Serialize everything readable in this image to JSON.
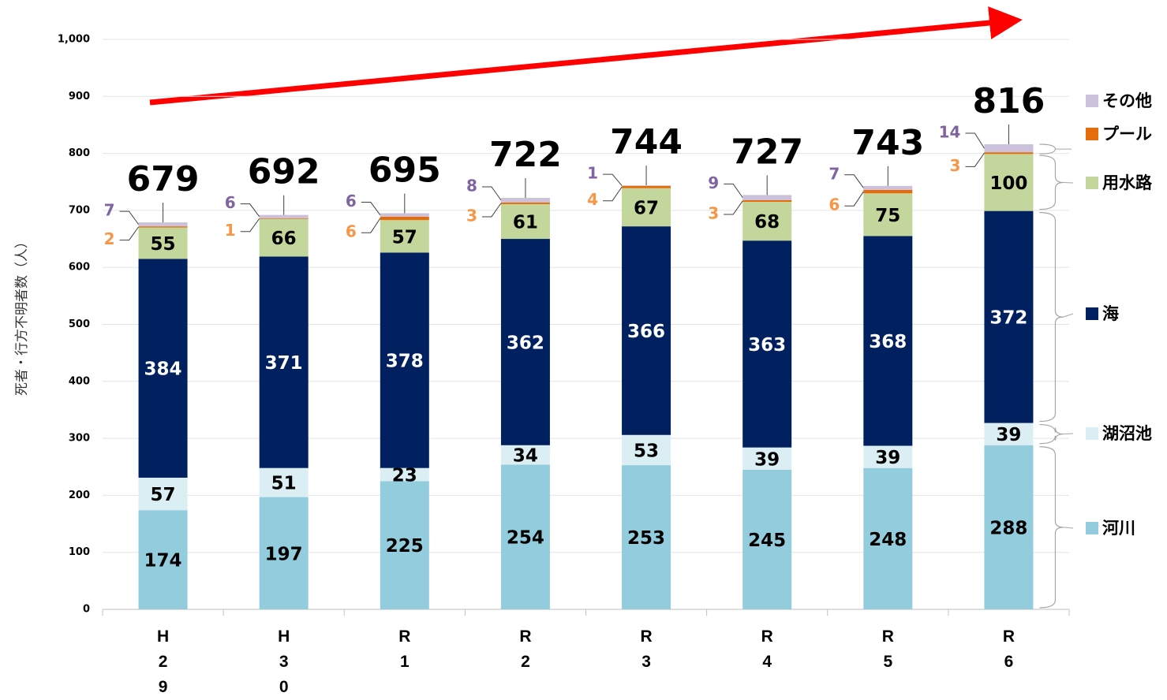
{
  "chart_data": {
    "type": "stacked_bar",
    "y_label": "死者・行方不明者数（人）",
    "categories": [
      "H29",
      "H30",
      "R1",
      "R2",
      "R3",
      "R4",
      "R5",
      "R6"
    ],
    "series": [
      {
        "name": "河川",
        "color": "#93cddd",
        "values": [
          174,
          197,
          225,
          254,
          253,
          245,
          248,
          288
        ]
      },
      {
        "name": "湖沼池",
        "color": "#dbeef4",
        "values": [
          57,
          51,
          23,
          34,
          53,
          39,
          39,
          39
        ]
      },
      {
        "name": "海",
        "color": "#002060",
        "values": [
          384,
          371,
          378,
          362,
          366,
          363,
          368,
          372
        ]
      },
      {
        "name": "用水路",
        "color": "#c3d69b",
        "values": [
          55,
          66,
          57,
          61,
          67,
          68,
          75,
          100
        ]
      },
      {
        "name": "プール",
        "color": "#e46c0a",
        "values": [
          2,
          1,
          6,
          3,
          4,
          3,
          6,
          3
        ]
      },
      {
        "name": "その他",
        "color": "#ccc1da",
        "values": [
          7,
          6,
          6,
          8,
          1,
          9,
          7,
          14
        ]
      }
    ],
    "totals": [
      679,
      692,
      695,
      722,
      744,
      727,
      743,
      816
    ],
    "ylim": [
      0,
      1000
    ],
    "yticks": [
      0,
      100,
      200,
      300,
      400,
      500,
      600,
      700,
      800,
      900,
      {
        "value": 1000,
        "label": "1,000"
      }
    ],
    "grid": true
  }
}
